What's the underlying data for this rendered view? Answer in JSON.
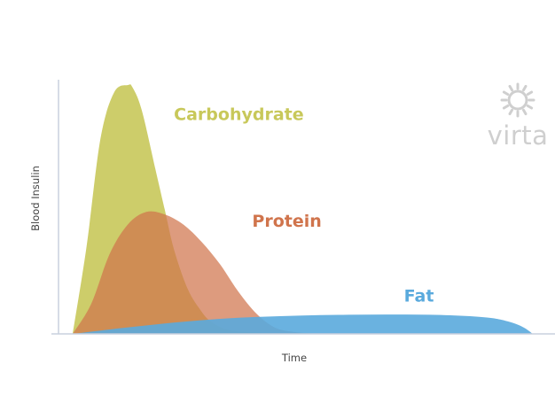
{
  "chart_data": {
    "type": "area",
    "xlabel": "Time",
    "ylabel": "Blood Insulin",
    "x_range": [
      0,
      100
    ],
    "y_range": [
      0,
      100
    ],
    "grid": false,
    "legend": "inline labels next to each curve",
    "series": [
      {
        "name": "Carbohydrate",
        "color": "#c8c85a",
        "opacity": 0.9,
        "x": [
          0,
          3,
          6,
          9,
          12,
          13,
          15,
          18,
          20,
          22,
          25,
          28,
          30,
          33,
          36,
          40,
          44,
          48
        ],
        "values": [
          0,
          35,
          78,
          97,
          100,
          99,
          90,
          66,
          50,
          34,
          18,
          9,
          5,
          2,
          1,
          0.5,
          0.2,
          0
        ],
        "label_anchor": {
          "x": 22,
          "y": 86
        },
        "label_color": "#c8c85a"
      },
      {
        "name": "Protein",
        "color": "#d0744c",
        "opacity": 0.72,
        "x": [
          0,
          4,
          8,
          12,
          16,
          20,
          24,
          28,
          32,
          36,
          40,
          44,
          48,
          52,
          56
        ],
        "values": [
          0,
          12,
          32,
          44,
          49,
          48,
          44,
          37,
          28,
          17,
          8,
          2.5,
          0.8,
          0.2,
          0
        ],
        "label_anchor": {
          "x": 39,
          "y": 43
        },
        "label_color": "#d0744c"
      },
      {
        "name": "Fat",
        "color": "#5aaadd",
        "opacity": 0.9,
        "x": [
          0,
          10,
          20,
          30,
          40,
          50,
          60,
          70,
          80,
          90,
          95,
          98,
          100
        ],
        "values": [
          0,
          2.2,
          4.2,
          5.8,
          6.8,
          7.4,
          7.7,
          7.8,
          7.6,
          6.6,
          4.8,
          2.6,
          0
        ],
        "label_anchor": {
          "x": 72,
          "y": 13
        },
        "label_color": "#5aaadd"
      }
    ]
  },
  "brand": {
    "wordmark": "virta",
    "icon": "sun-gear-icon",
    "color": "#cfcfcf"
  },
  "axis_color": "#c9d0de"
}
